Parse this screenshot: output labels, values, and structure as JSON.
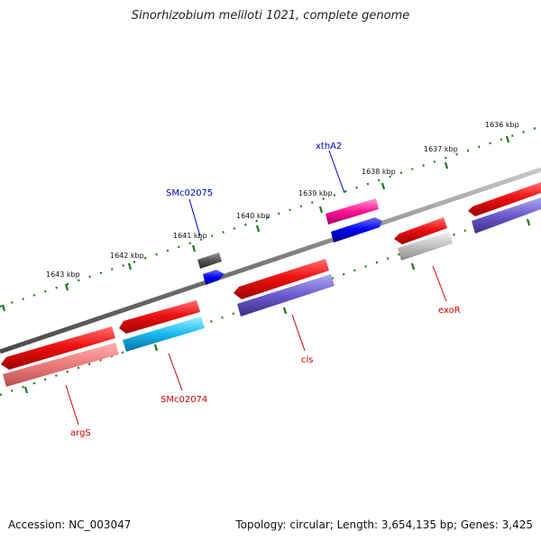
{
  "title": "Sinorhizobium meliloti 1021, complete genome",
  "footer": {
    "accession": "Accession: NC_003047",
    "info": "Topology: circular; Length: 3,654,135 bp; Genes: 3,425"
  },
  "colors": {
    "backbone": "#808080",
    "ruler_ticks": "#1a7a1a",
    "label_red": "#cc0000",
    "label_blue": "#0000cc"
  },
  "ruler": {
    "unit": "kbp",
    "ticks": [
      "1643 kbp",
      "1642 kbp",
      "1641 kbp",
      "1640 kbp",
      "1639 kbp",
      "1638 kbp",
      "1637 kbp",
      "1636 kbp"
    ]
  },
  "genes": [
    {
      "label": "argS",
      "label_color": "red"
    },
    {
      "label": "SMc02074",
      "label_color": "red"
    },
    {
      "label": "SMc02075",
      "label_color": "blue"
    },
    {
      "label": "cls",
      "label_color": "red"
    },
    {
      "label": "xthA2",
      "label_color": "blue"
    },
    {
      "label": "exoR",
      "label_color": "red"
    }
  ]
}
